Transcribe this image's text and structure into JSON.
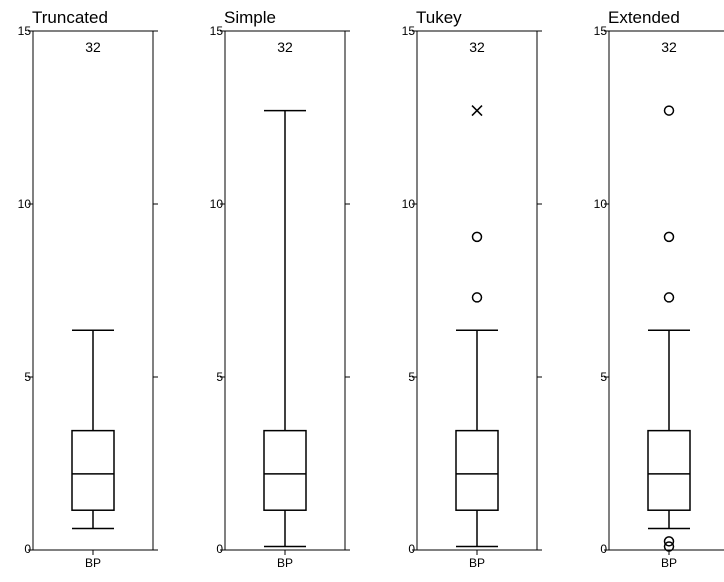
{
  "chart_data": [
    {
      "type": "boxplot",
      "title": "Truncated",
      "category": "BP",
      "count_label": "32",
      "ylim": [
        0,
        15
      ],
      "yticks": [
        0,
        5,
        10,
        15
      ],
      "box": {
        "q1": 1.15,
        "median": 2.2,
        "q3": 3.45
      },
      "whiskers": [
        0.62,
        6.35
      ],
      "outliers": []
    },
    {
      "type": "boxplot",
      "title": "Simple",
      "category": "BP",
      "count_label": "32",
      "ylim": [
        0,
        15
      ],
      "yticks": [
        0,
        5,
        10,
        15
      ],
      "box": {
        "q1": 1.15,
        "median": 2.2,
        "q3": 3.45
      },
      "whiskers": [
        0.1,
        12.7
      ],
      "outliers": []
    },
    {
      "type": "boxplot",
      "title": "Tukey",
      "category": "BP",
      "count_label": "32",
      "ylim": [
        0,
        15
      ],
      "yticks": [
        0,
        5,
        10,
        15
      ],
      "box": {
        "q1": 1.15,
        "median": 2.2,
        "q3": 3.45
      },
      "whiskers": [
        0.1,
        6.35
      ],
      "outliers": [
        {
          "value": 7.3,
          "marker": "circle"
        },
        {
          "value": 9.05,
          "marker": "circle"
        },
        {
          "value": 12.7,
          "marker": "cross"
        }
      ]
    },
    {
      "type": "boxplot",
      "title": "Extended",
      "category": "BP",
      "count_label": "32",
      "ylim": [
        0,
        15
      ],
      "yticks": [
        0,
        5,
        10,
        15
      ],
      "box": {
        "q1": 1.15,
        "median": 2.2,
        "q3": 3.45
      },
      "whiskers": [
        0.62,
        6.35
      ],
      "outliers": [
        {
          "value": 0.1,
          "marker": "circle"
        },
        {
          "value": 0.25,
          "marker": "circle"
        },
        {
          "value": 7.3,
          "marker": "circle"
        },
        {
          "value": 9.05,
          "marker": "circle"
        },
        {
          "value": 12.7,
          "marker": "circle"
        }
      ]
    }
  ]
}
